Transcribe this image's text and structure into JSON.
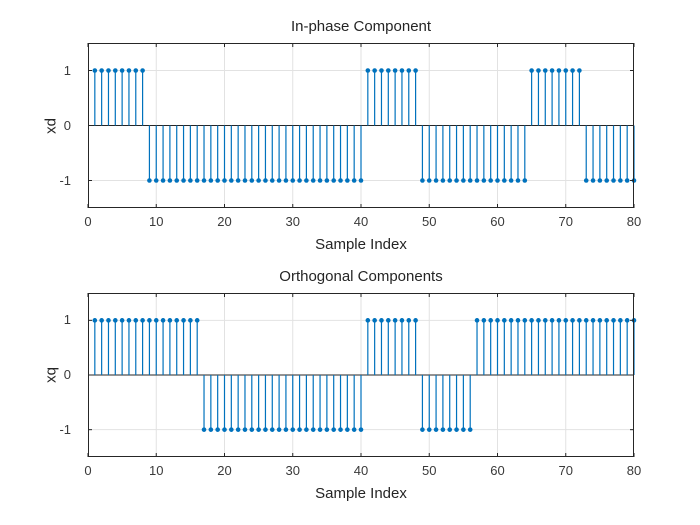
{
  "palette": {
    "stem": "#0072BD",
    "axis": "#262626",
    "grid": "#e2e2e2",
    "tick_text": "#3a3a3a",
    "label_text": "#252525",
    "background": "#ffffff"
  },
  "chart_data": [
    {
      "type": "stem",
      "title": "In-phase Component",
      "xlabel": "Sample Index",
      "ylabel": "xd",
      "xlim": [
        0,
        80
      ],
      "ylim": [
        -1.5,
        1.5
      ],
      "xticks": [
        0,
        10,
        20,
        30,
        40,
        50,
        60,
        70,
        80
      ],
      "yticks": [
        -1,
        0,
        1
      ],
      "grid": true,
      "marker": "filled-circle",
      "series_color": "#0072BD",
      "x_start": 1,
      "x_step": 1,
      "n": 80,
      "values": [
        1,
        1,
        1,
        1,
        1,
        1,
        1,
        1,
        -1,
        -1,
        -1,
        -1,
        -1,
        -1,
        -1,
        -1,
        -1,
        -1,
        -1,
        -1,
        -1,
        -1,
        -1,
        -1,
        -1,
        -1,
        -1,
        -1,
        -1,
        -1,
        -1,
        -1,
        -1,
        -1,
        -1,
        -1,
        -1,
        -1,
        -1,
        -1,
        1,
        1,
        1,
        1,
        1,
        1,
        1,
        1,
        -1,
        -1,
        -1,
        -1,
        -1,
        -1,
        -1,
        -1,
        -1,
        -1,
        -1,
        -1,
        -1,
        -1,
        -1,
        -1,
        1,
        1,
        1,
        1,
        1,
        1,
        1,
        1,
        -1,
        -1,
        -1,
        -1,
        -1,
        -1,
        -1,
        -1
      ]
    },
    {
      "type": "stem",
      "title": "Orthogonal Components",
      "xlabel": "Sample Index",
      "ylabel": "xq",
      "xlim": [
        0,
        80
      ],
      "ylim": [
        -1.5,
        1.5
      ],
      "xticks": [
        0,
        10,
        20,
        30,
        40,
        50,
        60,
        70,
        80
      ],
      "yticks": [
        -1,
        0,
        1
      ],
      "grid": true,
      "marker": "filled-circle",
      "series_color": "#0072BD",
      "x_start": 1,
      "x_step": 1,
      "n": 80,
      "values": [
        1,
        1,
        1,
        1,
        1,
        1,
        1,
        1,
        1,
        1,
        1,
        1,
        1,
        1,
        1,
        1,
        -1,
        -1,
        -1,
        -1,
        -1,
        -1,
        -1,
        -1,
        -1,
        -1,
        -1,
        -1,
        -1,
        -1,
        -1,
        -1,
        -1,
        -1,
        -1,
        -1,
        -1,
        -1,
        -1,
        -1,
        1,
        1,
        1,
        1,
        1,
        1,
        1,
        1,
        -1,
        -1,
        -1,
        -1,
        -1,
        -1,
        -1,
        -1,
        1,
        1,
        1,
        1,
        1,
        1,
        1,
        1,
        1,
        1,
        1,
        1,
        1,
        1,
        1,
        1,
        1,
        1,
        1,
        1,
        1,
        1,
        1,
        1
      ]
    }
  ]
}
